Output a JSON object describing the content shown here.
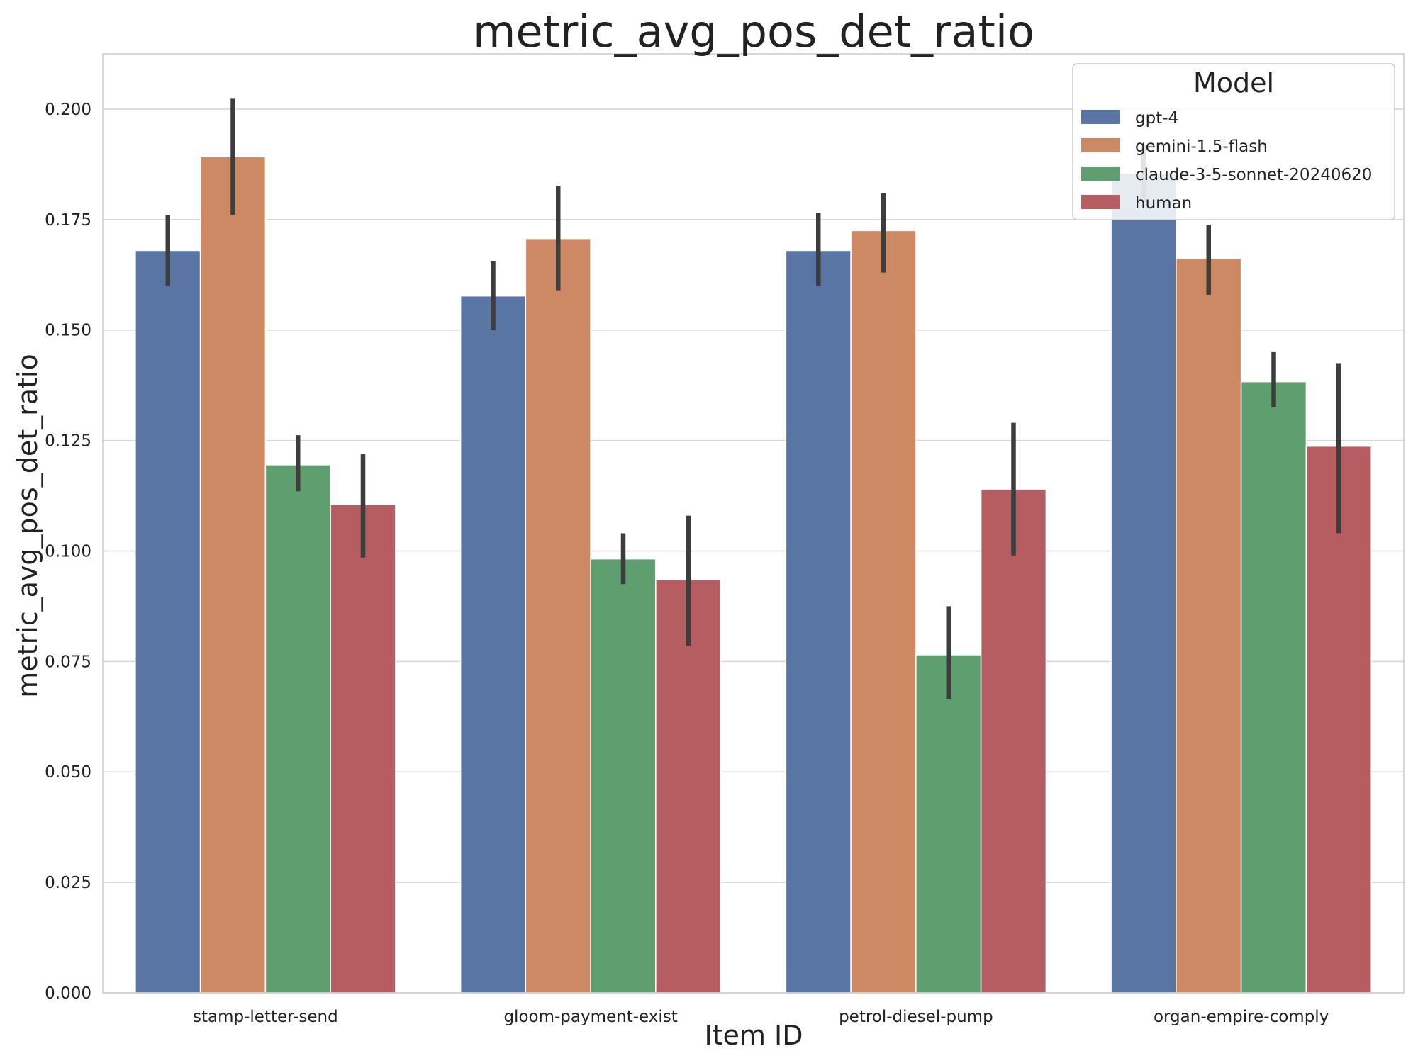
{
  "chart_data": {
    "type": "bar",
    "title": "metric_avg_pos_det_ratio",
    "xlabel": "Item ID",
    "ylabel": "metric_avg_pos_det_ratio",
    "ylim": [
      0,
      0.2125
    ],
    "yticks": [
      "0.000",
      "0.025",
      "0.050",
      "0.075",
      "0.100",
      "0.125",
      "0.150",
      "0.175",
      "0.200"
    ],
    "grid": "horizontal",
    "legend": {
      "title": "Model",
      "placement": "top-right"
    },
    "categories": [
      "stamp-letter-send",
      "gloom-payment-exist",
      "petrol-diesel-pump",
      "organ-empire-comply"
    ],
    "series": [
      {
        "name": "gpt-4",
        "color": "#5975a4",
        "values": [
          0.168,
          0.1577,
          0.168,
          0.1855
        ],
        "err_low": [
          0.16,
          0.15,
          0.16,
          0.179
        ],
        "err_high": [
          0.176,
          0.1655,
          0.1765,
          0.192
        ]
      },
      {
        "name": "gemini-1.5-flash",
        "color": "#cc8963",
        "values": [
          0.1892,
          0.1707,
          0.1725,
          0.1662
        ],
        "err_low": [
          0.176,
          0.159,
          0.163,
          0.158
        ],
        "err_high": [
          0.2025,
          0.1825,
          0.181,
          0.1738
        ]
      },
      {
        "name": "claude-3-5-sonnet-20240620",
        "color": "#5f9e6e",
        "values": [
          0.1195,
          0.0982,
          0.0765,
          0.1383
        ],
        "err_low": [
          0.1135,
          0.0925,
          0.0665,
          0.1325
        ],
        "err_high": [
          0.1262,
          0.104,
          0.0875,
          0.145
        ]
      },
      {
        "name": "human",
        "color": "#b55d60",
        "values": [
          0.1105,
          0.0935,
          0.114,
          0.1237
        ],
        "err_low": [
          0.0985,
          0.0785,
          0.099,
          0.104
        ],
        "err_high": [
          0.122,
          0.108,
          0.129,
          0.1425
        ]
      }
    ]
  }
}
